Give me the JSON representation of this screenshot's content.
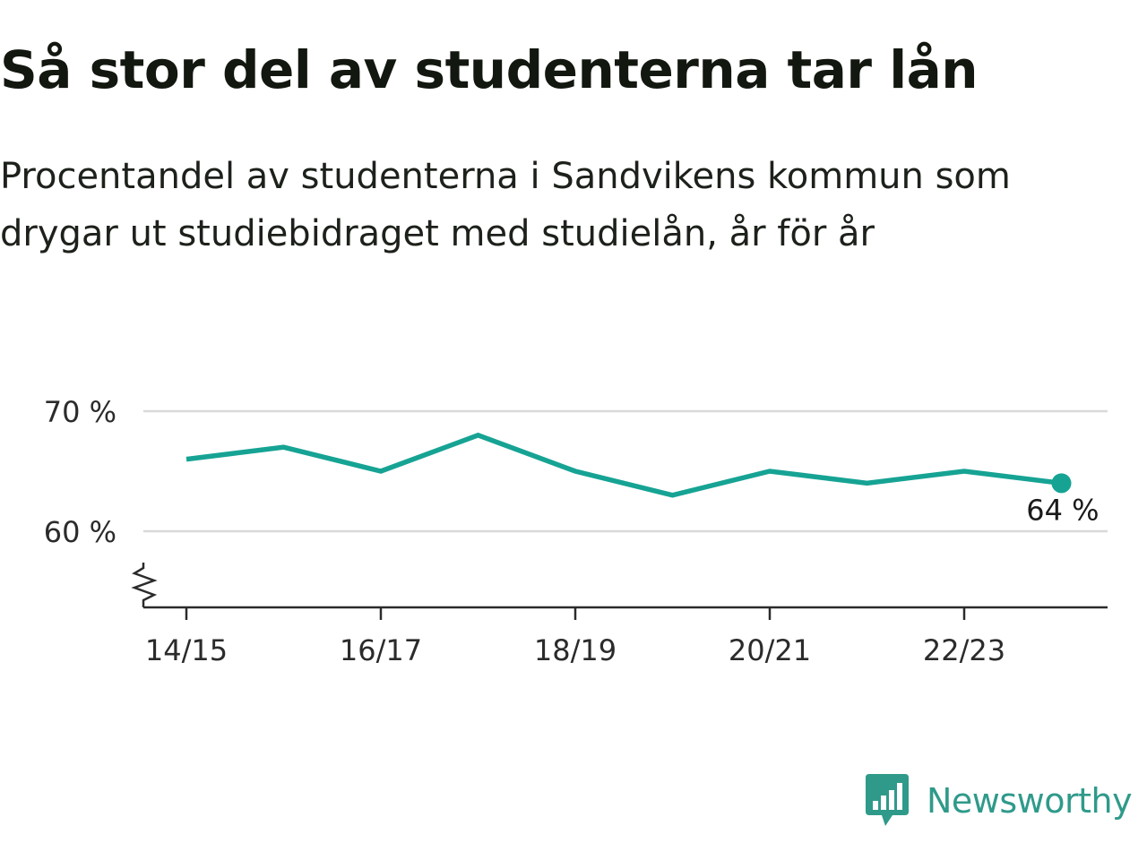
{
  "header": {
    "title": "Så stor del av studenterna tar lån",
    "subtitle": "Procentandel av studenterna i Sandvikens kommun som drygar ut studiebidraget med studielån, år för år"
  },
  "chart_data": {
    "type": "line",
    "title": "Så stor del av studenterna tar lån",
    "subtitle": "Procentandel av studenterna i Sandvikens kommun som drygar ut studiebidraget med studielån, år för år",
    "categories": [
      "14/15",
      "15/16",
      "16/17",
      "17/18",
      "18/19",
      "19/20",
      "20/21",
      "21/22",
      "22/23",
      "23/24"
    ],
    "x_tick_labels": [
      "14/15",
      "16/17",
      "18/19",
      "20/21",
      "22/23"
    ],
    "series": [
      {
        "values": [
          66,
          67,
          65,
          68,
          65,
          63,
          65,
          64,
          65,
          64
        ]
      }
    ],
    "y_ticks": [
      60,
      70
    ],
    "y_tick_labels": [
      "60 %",
      "70 %"
    ],
    "ylim": [
      53.5,
      70
    ],
    "y_axis_break": true,
    "end_label": "64 %",
    "grid": true,
    "legend": "none",
    "colors": {
      "line": "#16a394",
      "grid": "#d9d9d9",
      "axis": "#2b2b2b",
      "text": "#2b2b2b"
    }
  },
  "logo": {
    "name": "Newsworthy",
    "icon": "newsworthy-logo-icon",
    "color": "#2f9a8a"
  }
}
